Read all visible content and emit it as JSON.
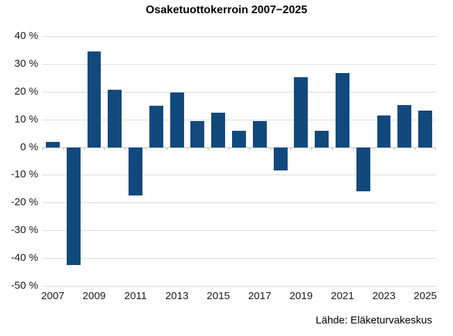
{
  "chart_data": {
    "type": "bar",
    "title": "Osaketuottokerroin 2007−2025",
    "source": "Lähde: Eläketurvakeskus",
    "categories": [
      "2007",
      "2008",
      "2009",
      "2010",
      "2011",
      "2012",
      "2013",
      "2014",
      "2015",
      "2016",
      "2017",
      "2018",
      "2019",
      "2020",
      "2021",
      "2022",
      "2023",
      "2024",
      "2025"
    ],
    "values": [
      2.0,
      -42.5,
      34.6,
      20.6,
      -17.5,
      15.0,
      19.8,
      9.4,
      12.3,
      5.8,
      9.5,
      -8.4,
      25.3,
      5.8,
      26.7,
      -16.0,
      11.4,
      15.2,
      13.1
    ],
    "ylim": [
      -50,
      40
    ],
    "y_ticks": [
      40,
      30,
      20,
      10,
      0,
      -10,
      -20,
      -30,
      -40,
      -50
    ],
    "y_tick_labels": [
      "40 %",
      "30 %",
      "20 %",
      "10 %",
      "0 %",
      "-10 %",
      "-20 %",
      "-30 %",
      "-40 %",
      "-50 %"
    ],
    "x_tick_labels": [
      "2007",
      "2009",
      "2011",
      "2013",
      "2015",
      "2017",
      "2019",
      "2021",
      "2023",
      "2025"
    ],
    "grid": true,
    "legend": "none",
    "colors": {
      "bar": "#12497d",
      "gridline": "#d9d9d9",
      "axis_line": "#bfbfbf",
      "text": "#1a1a1a"
    }
  }
}
